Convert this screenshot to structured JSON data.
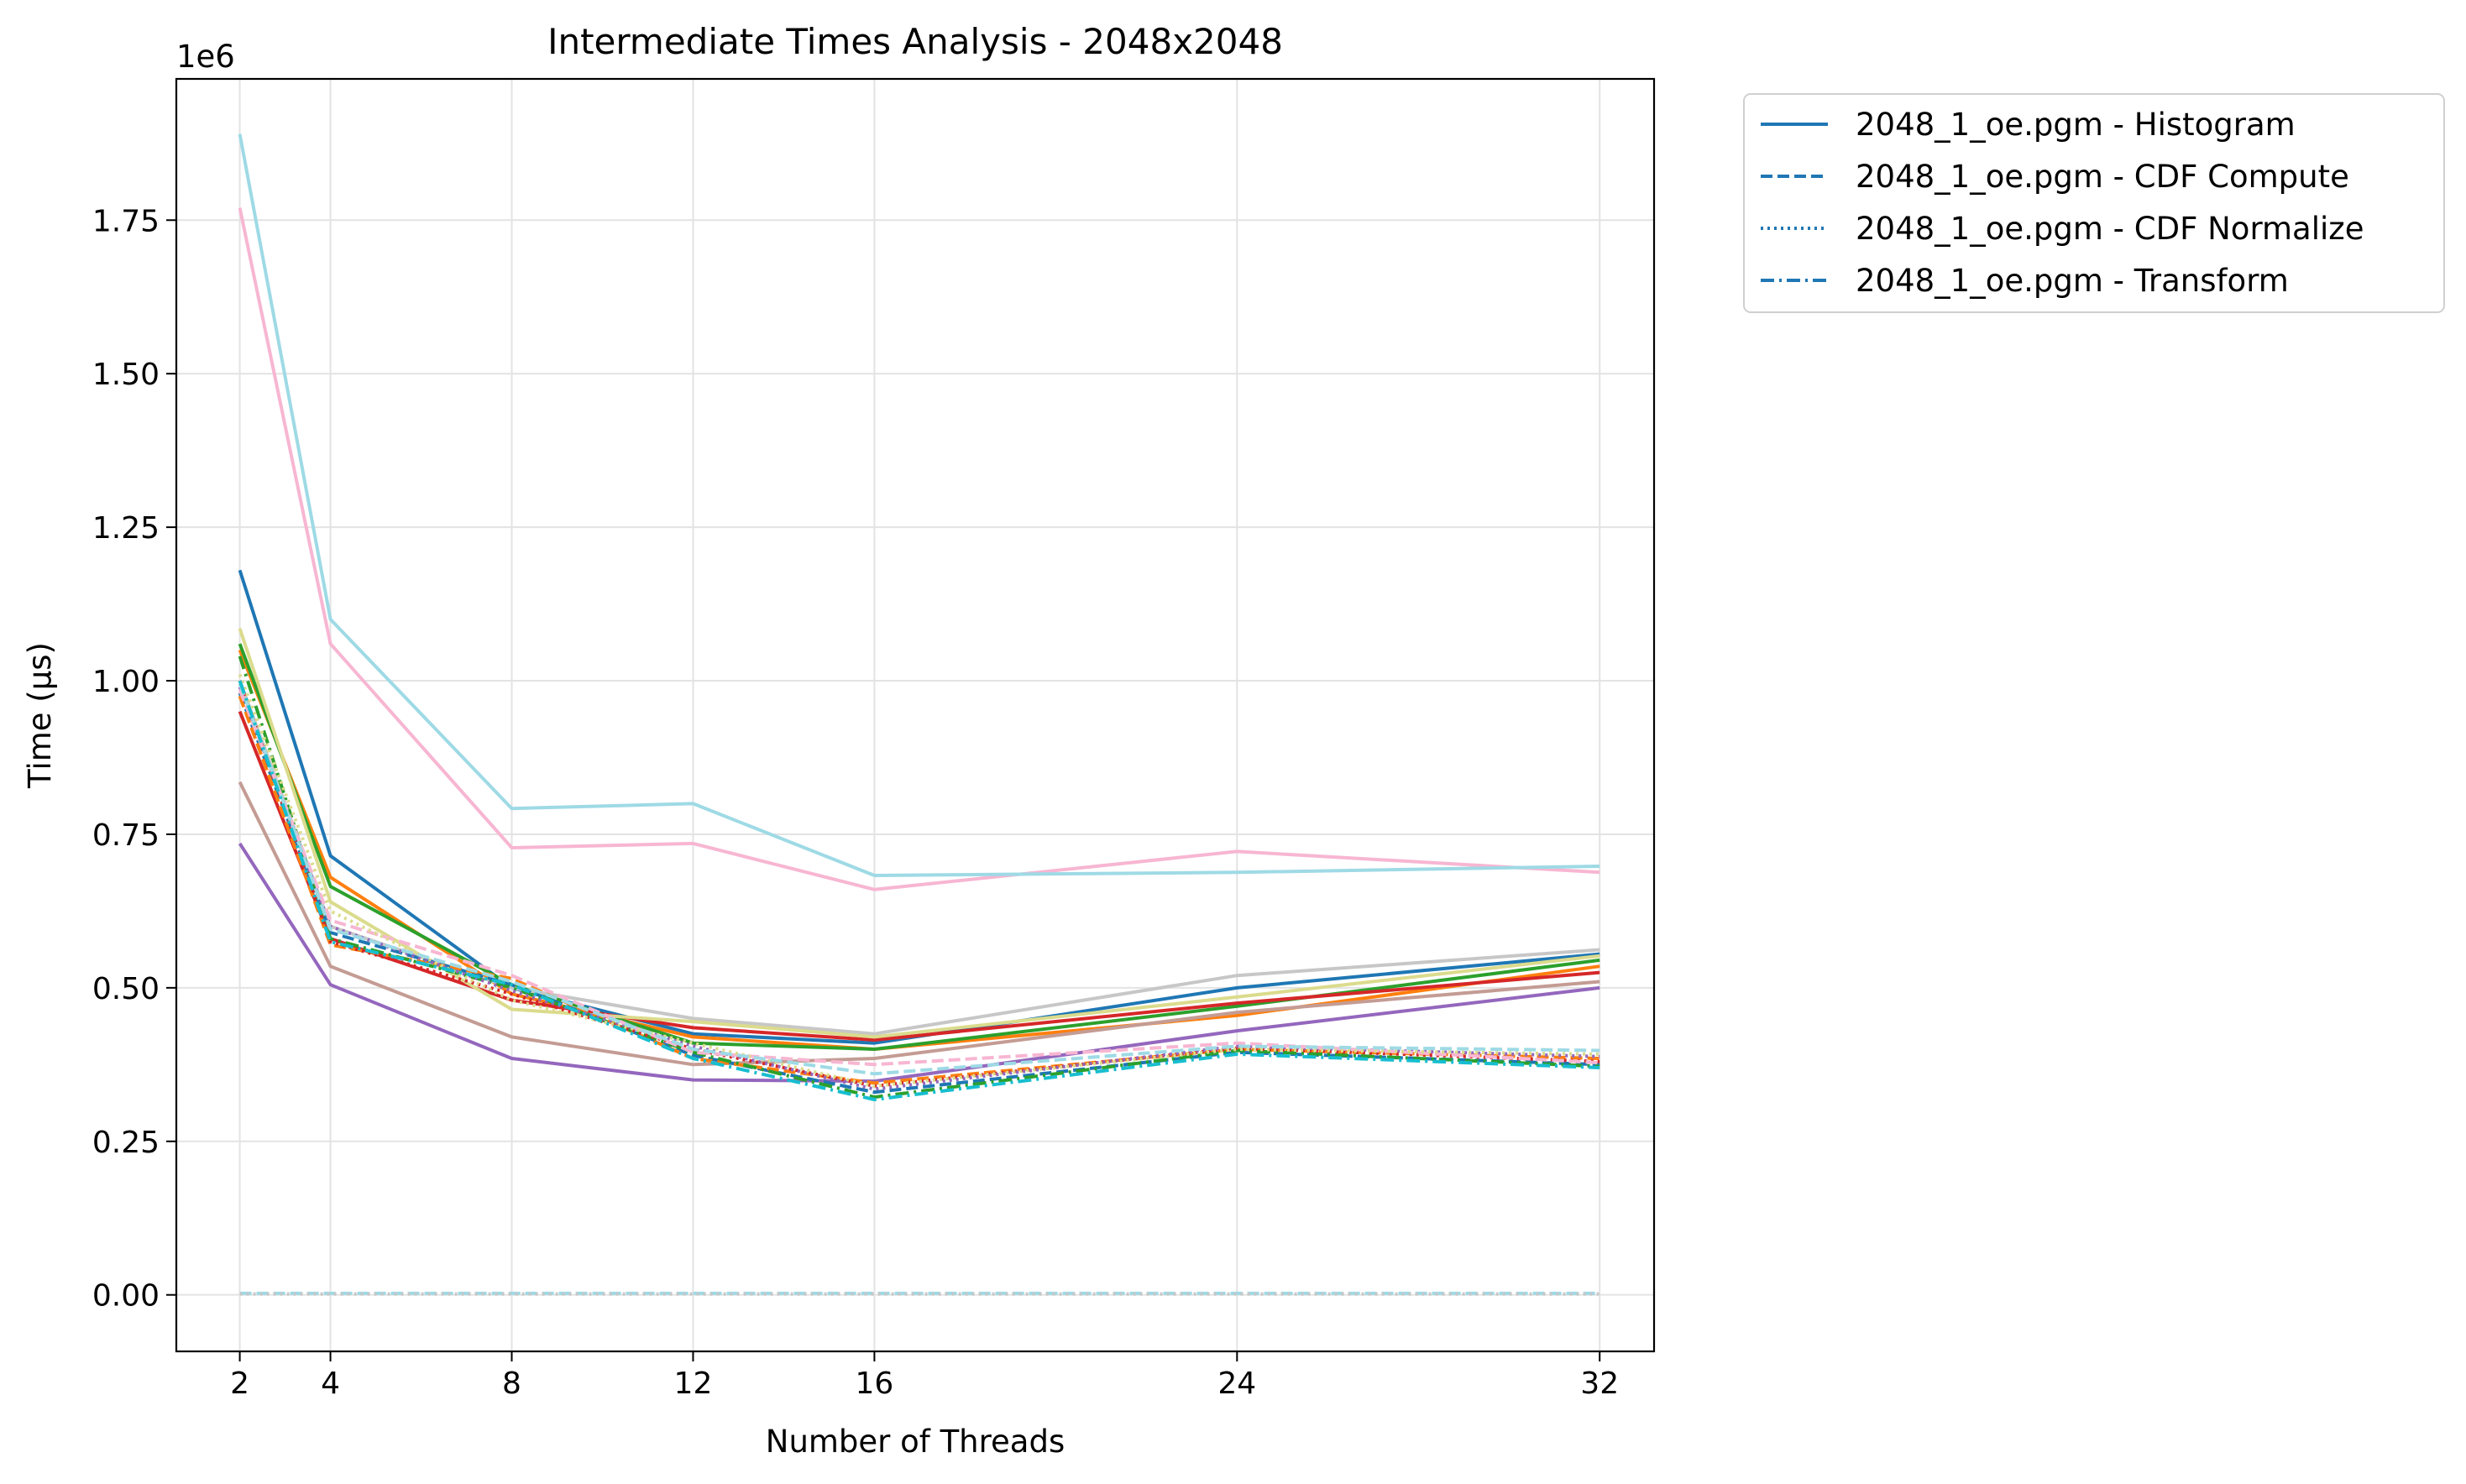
{
  "chart_data": {
    "type": "line",
    "title": "Intermediate Times Analysis - 2048x2048",
    "xlabel": "Number of Threads",
    "ylabel": "Time (µs)",
    "y_scale_label": "1e6",
    "x": [
      2,
      4,
      8,
      12,
      16,
      24,
      32
    ],
    "xticks": [
      "2",
      "4",
      "8",
      "12",
      "16",
      "24",
      "32"
    ],
    "yticks": [
      0,
      250000,
      500000,
      750000,
      1000000,
      1250000,
      1500000,
      1750000
    ],
    "ytick_labels": [
      "0.00",
      "0.25",
      "0.50",
      "0.75",
      "1.00",
      "1.25",
      "1.50",
      "1.75"
    ],
    "xlim": [
      0.6,
      33.2
    ],
    "ylim": [
      -92000,
      1980000
    ],
    "grid": true,
    "legend_position": "outside-top-right",
    "legend": [
      {
        "label": "2048_1_oe.pgm - Histogram",
        "style": "solid",
        "color": "#1f77b4"
      },
      {
        "label": "2048_1_oe.pgm - CDF Compute",
        "style": "dashed",
        "color": "#1f77b4"
      },
      {
        "label": "2048_1_oe.pgm - CDF Normalize",
        "style": "dotted",
        "color": "#1f77b4"
      },
      {
        "label": "2048_1_oe.pgm - Transform",
        "style": "dashdot",
        "color": "#1f77b4"
      }
    ],
    "series": [
      {
        "color": "#1f77b4",
        "style": "solid",
        "values": [
          1180000,
          715000,
          500000,
          425000,
          410000,
          500000,
          555000
        ]
      },
      {
        "color": "#ff7f0e",
        "style": "solid",
        "values": [
          1050000,
          680000,
          490000,
          420000,
          400000,
          455000,
          535000
        ]
      },
      {
        "color": "#2ca02c",
        "style": "solid",
        "values": [
          1060000,
          665000,
          505000,
          410000,
          400000,
          470000,
          545000
        ]
      },
      {
        "color": "#d62728",
        "style": "solid",
        "values": [
          950000,
          580000,
          480000,
          435000,
          415000,
          475000,
          525000
        ]
      },
      {
        "color": "#9467bd",
        "style": "solid",
        "values": [
          735000,
          505000,
          385000,
          350000,
          348000,
          430000,
          500000
        ]
      },
      {
        "color": "#c49c94",
        "style": "solid",
        "values": [
          835000,
          535000,
          420000,
          375000,
          385000,
          460000,
          510000
        ]
      },
      {
        "color": "#f7b6d2",
        "style": "solid",
        "values": [
          1770000,
          1060000,
          728000,
          735000,
          660000,
          722000,
          688000
        ]
      },
      {
        "color": "#c7c7c7",
        "style": "solid",
        "values": [
          1000000,
          600000,
          500000,
          450000,
          425000,
          520000,
          562000
        ]
      },
      {
        "color": "#dbdb8d",
        "style": "solid",
        "values": [
          1085000,
          640000,
          465000,
          445000,
          420000,
          485000,
          552000
        ]
      },
      {
        "color": "#9edae5",
        "style": "solid",
        "values": [
          1890000,
          1100000,
          792000,
          800000,
          683000,
          688000,
          698000
        ]
      },
      {
        "color": "#1f77b4",
        "style": "dashed",
        "values": [
          980000,
          590000,
          505000,
          390000,
          330000,
          395000,
          375000
        ]
      },
      {
        "color": "#ff7f0e",
        "style": "dashed",
        "values": [
          975000,
          570000,
          515000,
          385000,
          345000,
          400000,
          385000
        ]
      },
      {
        "color": "#2ca02c",
        "style": "dashdot",
        "values": [
          1040000,
          580000,
          500000,
          395000,
          322000,
          398000,
          372000
        ]
      },
      {
        "color": "#d62728",
        "style": "dotted",
        "values": [
          1000000,
          575000,
          490000,
          400000,
          340000,
          402000,
          380000
        ]
      },
      {
        "color": "#9467bd",
        "style": "dotted",
        "values": [
          990000,
          600000,
          495000,
          405000,
          335000,
          405000,
          388000
        ]
      },
      {
        "color": "#f7b6d2",
        "style": "dashed",
        "values": [
          985000,
          610000,
          520000,
          395000,
          375000,
          410000,
          378000
        ]
      },
      {
        "color": "#dbdb8d",
        "style": "dotted",
        "values": [
          1010000,
          625000,
          480000,
          410000,
          340000,
          400000,
          392000
        ]
      },
      {
        "color": "#9edae5",
        "style": "dashed",
        "values": [
          995000,
          595000,
          510000,
          400000,
          360000,
          405000,
          398000
        ]
      },
      {
        "color": "#17becf",
        "style": "dashdot",
        "values": [
          1000000,
          575000,
          505000,
          385000,
          318000,
          392000,
          370000
        ]
      },
      {
        "color": "#9edae5",
        "style": "dashed",
        "values": [
          2500,
          2500,
          2500,
          2500,
          2500,
          2500,
          2500
        ]
      },
      {
        "color": "#c7c7c7",
        "style": "dotted",
        "values": [
          1500,
          1500,
          1500,
          1500,
          1500,
          1500,
          1500
        ]
      }
    ]
  }
}
